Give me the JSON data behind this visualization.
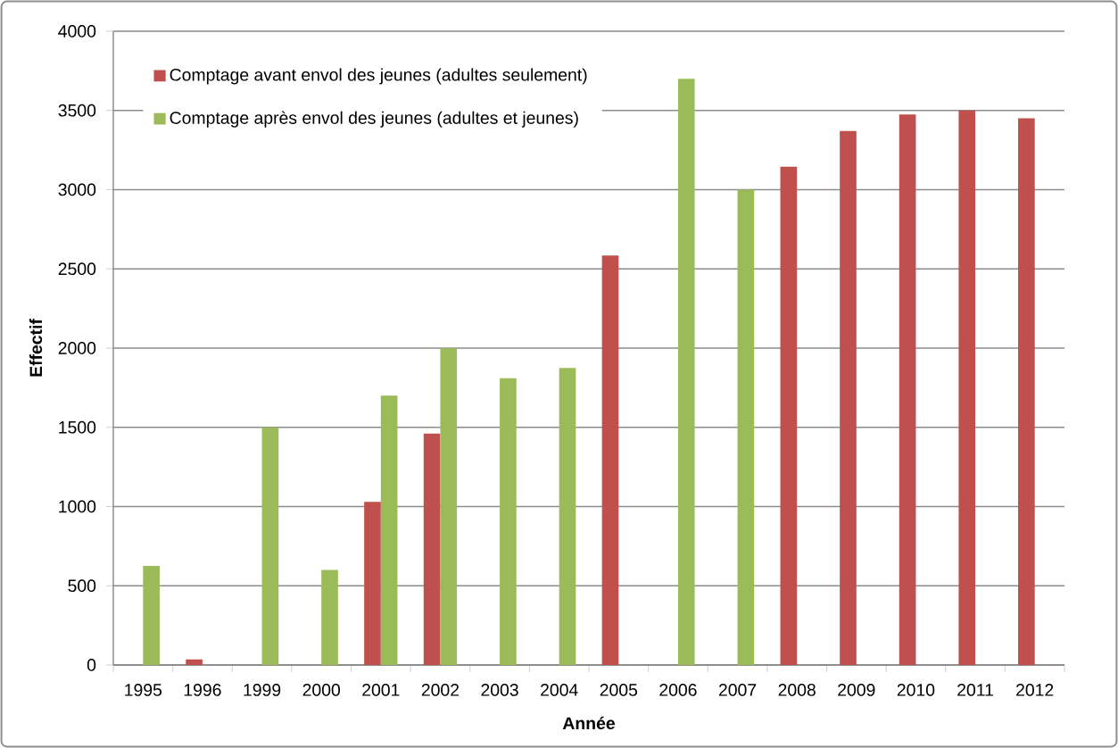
{
  "chart_data": {
    "type": "bar",
    "xlabel": "Année",
    "ylabel": "Effectif",
    "categories": [
      "1995",
      "1996",
      "1999",
      "2000",
      "2001",
      "2002",
      "2003",
      "2004",
      "2005",
      "2006",
      "2007",
      "2008",
      "2009",
      "2010",
      "2011",
      "2012"
    ],
    "series": [
      {
        "name": "Comptage avant envol des jeunes (adultes seulement)",
        "color": "#c0504d",
        "values": [
          null,
          35,
          null,
          null,
          1030,
          1460,
          null,
          null,
          2585,
          null,
          null,
          3145,
          3370,
          3475,
          3500,
          3450
        ]
      },
      {
        "name": "Comptage après envol des jeunes (adultes et jeunes)",
        "color": "#9bbb59",
        "values": [
          625,
          null,
          1500,
          600,
          1700,
          2000,
          1810,
          1875,
          null,
          3700,
          3000,
          null,
          null,
          null,
          null,
          null
        ]
      }
    ],
    "ylim": [
      0,
      4000
    ],
    "yticks": [
      0,
      500,
      1000,
      1500,
      2000,
      2500,
      3000,
      3500,
      4000
    ],
    "grid": "y",
    "legend": "top left"
  }
}
